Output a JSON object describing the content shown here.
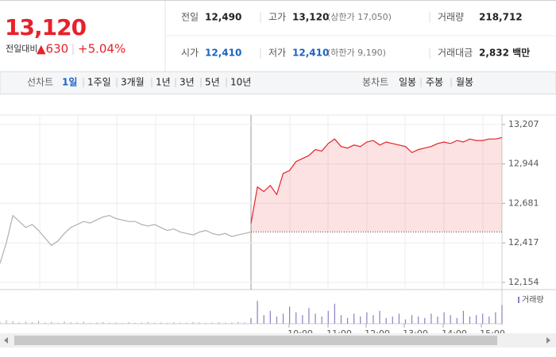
{
  "header": {
    "price": "13,120",
    "change_label": "전일대비",
    "change": "▲630",
    "change_pct": "+5.04%",
    "stats": [
      {
        "label": "전일",
        "value": "12,490"
      },
      {
        "label": "고가",
        "value": "13,120",
        "note": "(상한가 17,050)"
      },
      {
        "label": "거래량",
        "value": "218,712"
      },
      {
        "label": "시가",
        "value": "12,410"
      },
      {
        "label": "저가",
        "value": "12,410",
        "note": "(하한가 9,190)"
      },
      {
        "label": "거래대금",
        "value": "2,832 백만"
      }
    ]
  },
  "tabs": {
    "line_label": "선차트",
    "line": [
      "1일",
      "1주일",
      "3개월",
      "1년",
      "3년",
      "5년",
      "10년"
    ],
    "candle_label": "봉차트",
    "candle": [
      "일봉",
      "주봉",
      "월봉"
    ]
  },
  "chart_data": {
    "type": "line",
    "ylim": [
      12106,
      13270
    ],
    "yticks": [
      {
        "value": 13207,
        "label": "13,207"
      },
      {
        "value": 12944,
        "label": "12,944"
      },
      {
        "value": 12681,
        "label": "12,681"
      },
      {
        "value": 12417,
        "label": "12,417"
      },
      {
        "value": 12154,
        "label": "12,154"
      }
    ],
    "reference_line": 12490,
    "xlabels": [
      "10:00",
      "11:00",
      "12:00",
      "13:00",
      "14:00",
      "15:00"
    ],
    "series": [
      {
        "color": "#b0b0b0",
        "values": [
          12280,
          12420,
          12600,
          12560,
          12520,
          12540,
          12500,
          12450,
          12400,
          12430,
          12480,
          12520,
          12540,
          12560,
          12550,
          12570,
          12590,
          12600,
          12580,
          12570,
          12560,
          12560,
          12540,
          12530,
          12540,
          12520,
          12500,
          12510,
          12490,
          12480,
          12470,
          12490,
          12500,
          12480,
          12470,
          12480,
          12460,
          12470,
          12480,
          12490
        ]
      },
      {
        "color": "#e8212a",
        "values": [
          12547,
          12790,
          12760,
          12800,
          12740,
          12880,
          12900,
          12960,
          12980,
          13000,
          13040,
          13030,
          13080,
          13110,
          13060,
          13050,
          13070,
          13060,
          13090,
          13100,
          13070,
          13090,
          13080,
          13070,
          13060,
          13020,
          13040,
          13050,
          13060,
          13080,
          13090,
          13080,
          13100,
          13090,
          13110,
          13100,
          13100,
          13110,
          13110,
          13120
        ]
      }
    ],
    "volume_name": "거래량",
    "volume_ylim": [
      0,
      20000
    ],
    "volume": [
      [
        1200,
        2500,
        1800,
        900,
        1500,
        1100,
        2000,
        800,
        1300,
        700,
        1600,
        1000,
        900,
        1400,
        600,
        800,
        1200,
        700,
        900,
        500,
        1100,
        600,
        800,
        1300,
        700,
        900,
        600,
        1000,
        800,
        700,
        1200,
        900,
        600,
        800,
        1100,
        700,
        900,
        1300,
        1000,
        2200
      ],
      [
        4000,
        16000,
        6000,
        9000,
        5000,
        7000,
        12000,
        8000,
        6000,
        11000,
        7000,
        5000,
        9000,
        14000,
        6000,
        4000,
        7000,
        5000,
        8000,
        6000,
        9000,
        4000,
        5000,
        7000,
        3000,
        6000,
        5000,
        4000,
        7000,
        5000,
        8000,
        6000,
        4000,
        9000,
        5000,
        6000,
        7000,
        5000,
        8000,
        13000
      ]
    ]
  }
}
